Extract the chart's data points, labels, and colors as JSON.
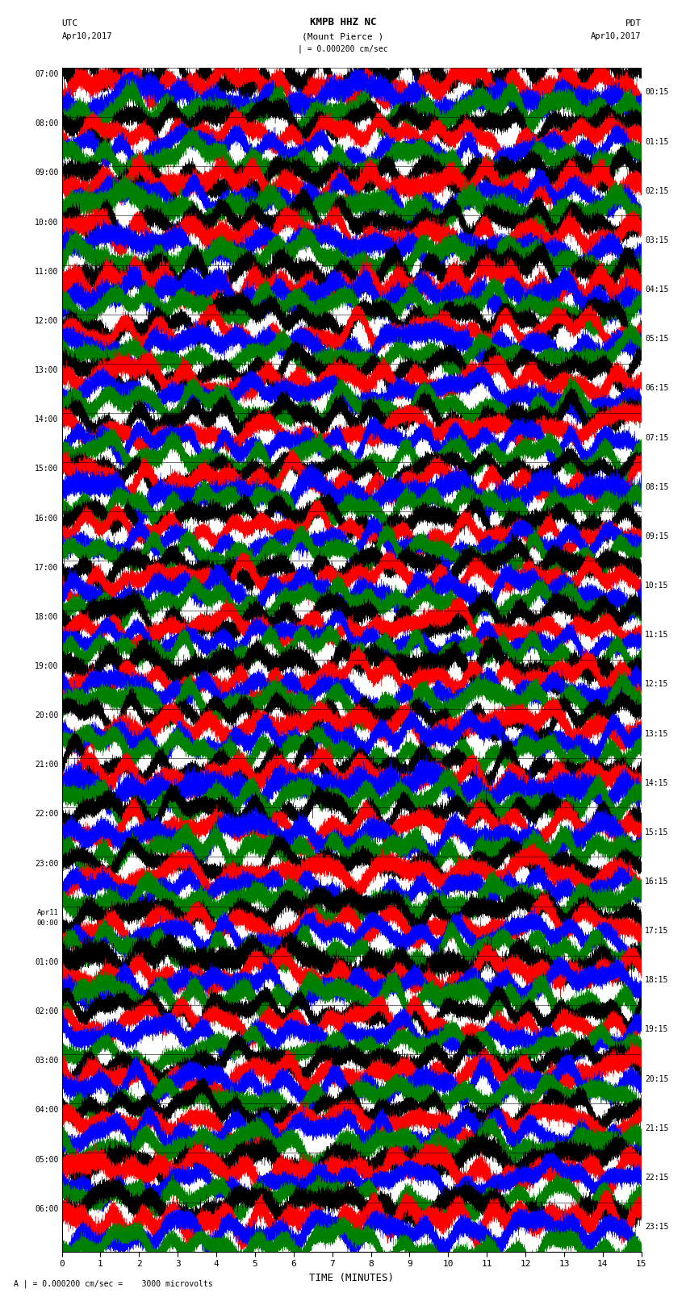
{
  "title_line1": "KMPB HHZ NC",
  "title_line2": "(Mount Pierce )",
  "title_line3": "| = 0.000200 cm/sec",
  "left_header_line1": "UTC",
  "left_header_line2": "Apr10,2017",
  "right_header_line1": "PDT",
  "right_header_line2": "Apr10,2017",
  "xlabel": "TIME (MINUTES)",
  "bottom_note": "A | = 0.000200 cm/sec =    3000 microvolts",
  "left_times": [
    "07:00",
    "08:00",
    "09:00",
    "10:00",
    "11:00",
    "12:00",
    "13:00",
    "14:00",
    "15:00",
    "16:00",
    "17:00",
    "18:00",
    "19:00",
    "20:00",
    "21:00",
    "22:00",
    "23:00",
    "Apr11\n00:00",
    "01:00",
    "02:00",
    "03:00",
    "04:00",
    "05:00",
    "06:00"
  ],
  "right_times": [
    "00:15",
    "01:15",
    "02:15",
    "03:15",
    "04:15",
    "05:15",
    "06:15",
    "07:15",
    "08:15",
    "09:15",
    "10:15",
    "11:15",
    "12:15",
    "13:15",
    "14:15",
    "15:15",
    "16:15",
    "17:15",
    "18:15",
    "19:15",
    "20:15",
    "21:15",
    "22:15",
    "23:15"
  ],
  "num_groups": 24,
  "traces_per_group": 4,
  "trace_duration_minutes": 15,
  "sample_rate": 50,
  "colors_cycle": [
    "black",
    "red",
    "blue",
    "green"
  ],
  "amplitude_scale": 0.42,
  "background_color": "white",
  "xticks": [
    0,
    1,
    2,
    3,
    4,
    5,
    6,
    7,
    8,
    9,
    10,
    11,
    12,
    13,
    14,
    15
  ],
  "xlim": [
    0,
    15
  ],
  "figsize": [
    8.5,
    16.13
  ]
}
